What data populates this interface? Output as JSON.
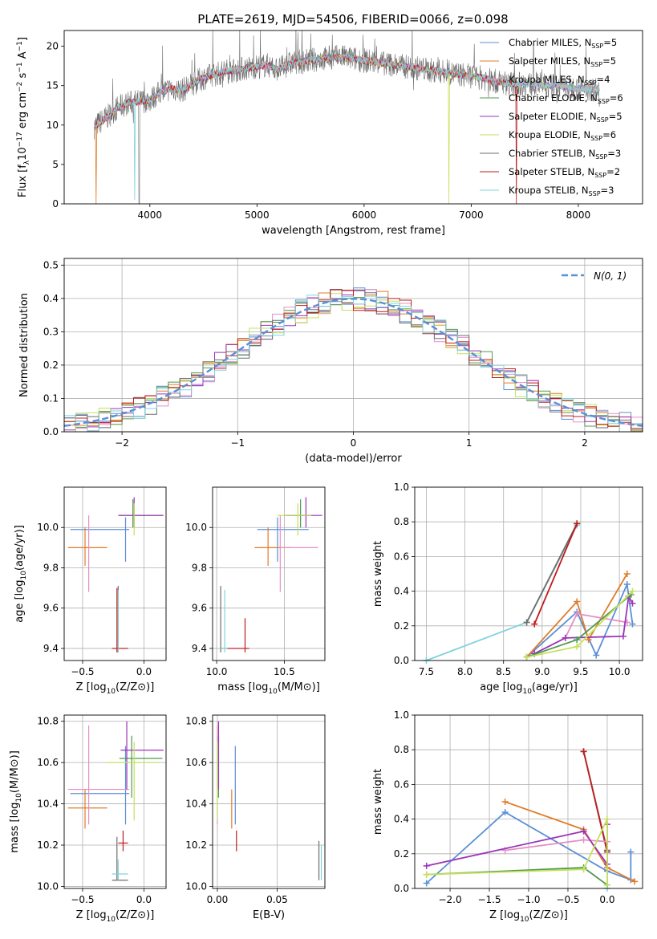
{
  "figure_title": "PLATE=2619, MJD=54506, FIBERID=0066, z=0.098",
  "colors": {
    "blue": "#5b8fd6",
    "orange": "#e07b28",
    "pink": "#e58fc6",
    "green": "#4f9a4f",
    "purple": "#9b35b8",
    "lime": "#c6e05c",
    "gray": "#6e6e6e",
    "red": "#c21b1b",
    "cyan": "#7fd3dc",
    "grid": "#b0b0b0"
  },
  "chart_data": [
    {
      "type": "line",
      "panel": "spectrum",
      "title": "PLATE=2619, MJD=54506, FIBERID=0066, z=0.098",
      "xlabel": "wavelength [Angstrom, rest frame]",
      "ylabel": "Flux [f",
      "xlim": [
        3200,
        8600
      ],
      "ylim": [
        0,
        22
      ],
      "xticks": [
        "4000",
        "5000",
        "6000",
        "7000",
        "8000"
      ],
      "yticks": [
        "0",
        "5",
        "10",
        "15",
        "20"
      ],
      "legend_position": "right",
      "legend": [
        {
          "label": "Chabrier MILES, N",
          "sub": "SSP",
          "suffix": "=5",
          "color": "blue"
        },
        {
          "label": "Salpeter MILES, N",
          "sub": "SSP",
          "suffix": "=5",
          "color": "orange"
        },
        {
          "label": "Kroupa MILES, N",
          "sub": "SSP",
          "suffix": "=4",
          "color": "pink"
        },
        {
          "label": "Chabrier ELODIE, N",
          "sub": "SSP",
          "suffix": "=6",
          "color": "green"
        },
        {
          "label": "Salpeter ELODIE, N",
          "sub": "SSP",
          "suffix": "=5",
          "color": "purple"
        },
        {
          "label": "Kroupa ELODIE, N",
          "sub": "SSP",
          "suffix": "=6",
          "color": "lime"
        },
        {
          "label": "Chabrier STELIB, N",
          "sub": "SSP",
          "suffix": "=3",
          "color": "gray"
        },
        {
          "label": "Salpeter STELIB, N",
          "sub": "SSP",
          "suffix": "=2",
          "color": "red"
        },
        {
          "label": "Kroupa STELIB, N",
          "sub": "SSP",
          "suffix": "=3",
          "color": "cyan"
        }
      ],
      "continuum": [
        [
          3480,
          9.8
        ],
        [
          3600,
          11.0
        ],
        [
          3700,
          12.2
        ],
        [
          3800,
          12.8
        ],
        [
          3900,
          13.0
        ],
        [
          4000,
          13.2
        ],
        [
          4100,
          14.2
        ],
        [
          4200,
          14.6
        ],
        [
          4300,
          14.4
        ],
        [
          4400,
          15.2
        ],
        [
          4500,
          16.0
        ],
        [
          4600,
          16.4
        ],
        [
          4700,
          16.8
        ],
        [
          4800,
          17.0
        ],
        [
          4900,
          17.2
        ],
        [
          5000,
          17.4
        ],
        [
          5100,
          17.6
        ],
        [
          5200,
          17.0
        ],
        [
          5300,
          17.8
        ],
        [
          5400,
          18.0
        ],
        [
          5500,
          18.2
        ],
        [
          5600,
          18.4
        ],
        [
          5700,
          18.6
        ],
        [
          5800,
          18.6
        ],
        [
          5900,
          18.4
        ],
        [
          6000,
          18.2
        ],
        [
          6100,
          18.0
        ],
        [
          6200,
          17.8
        ],
        [
          6300,
          17.6
        ],
        [
          6400,
          17.4
        ],
        [
          6500,
          17.2
        ],
        [
          6600,
          17.0
        ],
        [
          6700,
          16.8
        ],
        [
          6800,
          16.6
        ],
        [
          6900,
          16.4
        ],
        [
          7000,
          16.2
        ],
        [
          7100,
          16.0
        ],
        [
          7200,
          15.6
        ],
        [
          7300,
          15.4
        ],
        [
          7400,
          15.2
        ],
        [
          7500,
          15.2
        ],
        [
          7600,
          15.2
        ],
        [
          7700,
          15.0
        ],
        [
          7800,
          15.0
        ],
        [
          7900,
          14.8
        ],
        [
          8000,
          14.6
        ],
        [
          8100,
          14.6
        ],
        [
          8200,
          14.5
        ]
      ],
      "drops": [
        {
          "series": "orange",
          "x": 3500,
          "y": 0
        },
        {
          "series": "cyan",
          "x": 3860,
          "y": 0.5
        },
        {
          "series": "gray",
          "x": 3900,
          "y": 0
        },
        {
          "series": "lime",
          "x": 6790,
          "y": 0
        },
        {
          "series": "red",
          "x": 7420,
          "y": 0
        }
      ]
    },
    {
      "type": "line",
      "panel": "residuals",
      "xlabel": "(data-model)/error",
      "ylabel": "Normed distribution",
      "xlim": [
        -2.5,
        2.5
      ],
      "ylim": [
        0,
        0.52
      ],
      "xticks": [
        "−2",
        "−1",
        "0",
        "1",
        "2"
      ],
      "yticks": [
        "0.0",
        "0.1",
        "0.2",
        "0.3",
        "0.4",
        "0.5"
      ],
      "legend_position": "top-right",
      "gaussian_label": "N(0, 1)",
      "gaussian_color": "blue",
      "bin_width": 0.1
    },
    {
      "type": "scatter",
      "panel": "age-vs-Z",
      "xlabel": "Z [log",
      "ylabel": "age  [log",
      "xlim": [
        -0.65,
        0.18
      ],
      "ylim": [
        9.34,
        10.2
      ],
      "xticks": [
        "−0.5",
        "0.0"
      ],
      "yticks": [
        "9.4",
        "9.6",
        "9.8",
        "10.0"
      ],
      "points": [
        {
          "color": "blue",
          "x": -0.15,
          "y": 9.99,
          "xlo": -0.6,
          "xhi": -0.12,
          "ylo": 9.83,
          "yhi": 10.05
        },
        {
          "color": "orange",
          "x": -0.48,
          "y": 9.9,
          "xlo": -0.62,
          "xhi": -0.3,
          "ylo": 9.81,
          "yhi": 10.0
        },
        {
          "color": "pink",
          "x": -0.45,
          "y": 9.9,
          "xlo": -0.45,
          "xhi": -0.45,
          "ylo": 9.68,
          "yhi": 10.06
        },
        {
          "color": "green",
          "x": -0.09,
          "y": 10.06,
          "xlo": -0.2,
          "xhi": 0.15,
          "ylo": 10.0,
          "yhi": 10.14
        },
        {
          "color": "purple",
          "x": -0.08,
          "y": 10.06,
          "xlo": -0.21,
          "xhi": 0.16,
          "ylo": 10.0,
          "yhi": 10.15
        },
        {
          "color": "lime",
          "x": -0.08,
          "y": 10.06,
          "xlo": -0.08,
          "xhi": -0.08,
          "ylo": 9.96,
          "yhi": 10.12
        },
        {
          "color": "gray",
          "x": -0.21,
          "y": 9.4,
          "xlo": -0.26,
          "xhi": -0.13,
          "ylo": 9.38,
          "yhi": 9.71
        },
        {
          "color": "red",
          "x": -0.22,
          "y": 9.4,
          "xlo": -0.26,
          "xhi": -0.13,
          "ylo": 9.38,
          "yhi": 9.7
        },
        {
          "color": "cyan",
          "x": -0.21,
          "y": 9.4,
          "xlo": -0.21,
          "xhi": -0.21,
          "ylo": 9.38,
          "yhi": 9.69
        }
      ]
    },
    {
      "type": "scatter",
      "panel": "age-vs-mass",
      "xlabel": "mass [log",
      "ylabel": "",
      "xlim": [
        9.97,
        10.8
      ],
      "ylim": [
        9.34,
        10.2
      ],
      "xticks": [
        "10.0",
        "10.5"
      ],
      "yticks": [
        "9.4",
        "9.6",
        "9.8",
        "10.0"
      ],
      "points": [
        {
          "color": "blue",
          "x": 10.45,
          "y": 9.99,
          "xlo": 10.3,
          "xhi": 10.68,
          "ylo": 9.83,
          "yhi": 10.05
        },
        {
          "color": "orange",
          "x": 10.38,
          "y": 9.9,
          "xlo": 10.28,
          "xhi": 10.55,
          "ylo": 9.81,
          "yhi": 10.0
        },
        {
          "color": "pink",
          "x": 10.47,
          "y": 9.9,
          "xlo": 10.47,
          "xhi": 10.75,
          "ylo": 9.68,
          "yhi": 10.06
        },
        {
          "color": "green",
          "x": 10.62,
          "y": 10.06,
          "xlo": 10.52,
          "xhi": 10.7,
          "ylo": 10.0,
          "yhi": 10.14
        },
        {
          "color": "purple",
          "x": 10.66,
          "y": 10.06,
          "xlo": 10.5,
          "xhi": 10.78,
          "ylo": 10.0,
          "yhi": 10.15
        },
        {
          "color": "lime",
          "x": 10.6,
          "y": 10.06,
          "xlo": 10.45,
          "xhi": 10.7,
          "ylo": 9.96,
          "yhi": 10.12
        },
        {
          "color": "gray",
          "x": 10.03,
          "y": 9.4,
          "xlo": 10.03,
          "xhi": 10.24,
          "ylo": 9.38,
          "yhi": 9.71
        },
        {
          "color": "red",
          "x": 10.21,
          "y": 9.4,
          "xlo": 10.03,
          "xhi": 10.24,
          "ylo": 9.38,
          "yhi": 9.55
        },
        {
          "color": "cyan",
          "x": 10.06,
          "y": 9.4,
          "xlo": 10.03,
          "xhi": 10.08,
          "ylo": 9.38,
          "yhi": 9.69
        }
      ]
    },
    {
      "type": "line",
      "panel": "weight-vs-age",
      "xlabel": "age  [log",
      "ylabel": "mass weight",
      "xlim": [
        7.35,
        10.3
      ],
      "ylim": [
        0,
        1.0
      ],
      "xticks": [
        "7.5",
        "8.0",
        "8.5",
        "9.0",
        "9.5",
        "10.0"
      ],
      "yticks": [
        "0.0",
        "0.2",
        "0.4",
        "0.6",
        "0.8",
        "1.0"
      ],
      "series": [
        {
          "color": "cyan",
          "x": [
            7.5,
            8.8,
            9.45
          ],
          "y": [
            0.0,
            0.22,
            0.78
          ]
        },
        {
          "color": "gray",
          "x": [
            8.8,
            9.45
          ],
          "y": [
            0.22,
            0.79
          ]
        },
        {
          "color": "red",
          "x": [
            8.9,
            9.45
          ],
          "y": [
            0.21,
            0.79
          ]
        },
        {
          "color": "blue",
          "x": [
            8.8,
            9.45,
            9.7,
            10.1,
            10.17
          ],
          "y": [
            0.02,
            0.28,
            0.03,
            0.44,
            0.21
          ]
        },
        {
          "color": "orange",
          "x": [
            8.8,
            9.45,
            9.6,
            10.1
          ],
          "y": [
            0.02,
            0.34,
            0.12,
            0.5
          ]
        },
        {
          "color": "pink",
          "x": [
            9.3,
            9.45,
            10.1
          ],
          "y": [
            0.13,
            0.27,
            0.22
          ]
        },
        {
          "color": "purple",
          "x": [
            8.9,
            9.3,
            10.05,
            10.12,
            10.17
          ],
          "y": [
            0.04,
            0.13,
            0.14,
            0.37,
            0.33
          ]
        },
        {
          "color": "green",
          "x": [
            8.8,
            9.45,
            10.15
          ],
          "y": [
            0.02,
            0.12,
            0.38
          ]
        },
        {
          "color": "lime",
          "x": [
            8.8,
            9.45,
            10.17
          ],
          "y": [
            0.02,
            0.08,
            0.4
          ]
        }
      ]
    },
    {
      "type": "scatter",
      "panel": "mass-vs-Z",
      "xlabel": "Z [log",
      "ylabel": "mass [log",
      "xlim": [
        -0.65,
        0.18
      ],
      "ylim": [
        9.99,
        10.83
      ],
      "xticks": [
        "−0.5",
        "0.0"
      ],
      "yticks": [
        "10.0",
        "10.2",
        "10.4",
        "10.6",
        "10.8"
      ],
      "points": [
        {
          "color": "blue",
          "x": -0.15,
          "y": 10.45,
          "xlo": -0.6,
          "xhi": -0.12,
          "ylo": 10.3,
          "yhi": 10.68
        },
        {
          "color": "orange",
          "x": -0.48,
          "y": 10.38,
          "xlo": -0.62,
          "xhi": -0.3,
          "ylo": 10.28,
          "yhi": 10.47
        },
        {
          "color": "pink",
          "x": -0.45,
          "y": 10.47,
          "xlo": -0.62,
          "xhi": -0.12,
          "ylo": 10.3,
          "yhi": 10.78
        },
        {
          "color": "green",
          "x": -0.1,
          "y": 10.62,
          "xlo": -0.2,
          "xhi": 0.15,
          "ylo": 10.43,
          "yhi": 10.73
        },
        {
          "color": "purple",
          "x": -0.14,
          "y": 10.66,
          "xlo": -0.19,
          "xhi": 0.16,
          "ylo": 10.47,
          "yhi": 10.8
        },
        {
          "color": "lime",
          "x": -0.08,
          "y": 10.6,
          "xlo": -0.3,
          "xhi": 0.12,
          "ylo": 10.32,
          "yhi": 10.7
        },
        {
          "color": "gray",
          "x": -0.22,
          "y": 10.03,
          "xlo": -0.26,
          "xhi": -0.13,
          "ylo": 10.03,
          "yhi": 10.24
        },
        {
          "color": "red",
          "x": -0.17,
          "y": 10.21,
          "xlo": -0.21,
          "xhi": -0.13,
          "ylo": 10.17,
          "yhi": 10.27
        },
        {
          "color": "cyan",
          "x": -0.21,
          "y": 10.06,
          "xlo": -0.26,
          "xhi": -0.13,
          "ylo": 10.03,
          "yhi": 10.13
        }
      ]
    },
    {
      "type": "scatter",
      "panel": "mass-vs-EBV",
      "xlabel": "E(B-V)",
      "ylabel": "",
      "xlim": [
        -0.004,
        0.09
      ],
      "ylim": [
        9.99,
        10.83
      ],
      "xticks": [
        "0.00",
        "0.05"
      ],
      "yticks": [
        "10.0",
        "10.2",
        "10.4",
        "10.6",
        "10.8"
      ],
      "points": [
        {
          "color": "blue",
          "x": 0.015,
          "y": 10.45,
          "ylo": 10.3,
          "yhi": 10.68
        },
        {
          "color": "orange",
          "x": 0.012,
          "y": 10.38,
          "ylo": 10.28,
          "yhi": 10.47
        },
        {
          "color": "pink",
          "x": 0.0,
          "y": 10.47,
          "ylo": 10.3,
          "yhi": 10.78
        },
        {
          "color": "green",
          "x": 0.001,
          "y": 10.62,
          "ylo": 10.43,
          "yhi": 10.73
        },
        {
          "color": "purple",
          "x": 0.001,
          "y": 10.66,
          "ylo": 10.47,
          "yhi": 10.8
        },
        {
          "color": "lime",
          "x": 0.0,
          "y": 10.6,
          "ylo": 10.32,
          "yhi": 10.7
        },
        {
          "color": "gray",
          "x": 0.085,
          "y": 10.03,
          "ylo": 10.03,
          "yhi": 10.22
        },
        {
          "color": "red",
          "x": 0.016,
          "y": 10.21,
          "ylo": 10.17,
          "yhi": 10.27
        },
        {
          "color": "cyan",
          "x": 0.087,
          "y": 10.06,
          "ylo": 10.03,
          "yhi": 10.2
        }
      ]
    },
    {
      "type": "line",
      "panel": "weight-vs-Z",
      "xlabel": "Z [log",
      "ylabel": "mass weight",
      "xlim": [
        -2.45,
        0.45
      ],
      "ylim": [
        0,
        1.0
      ],
      "xticks": [
        "−2.0",
        "−1.5",
        "−1.0",
        "−0.5",
        "0.0"
      ],
      "yticks": [
        "0.0",
        "0.2",
        "0.4",
        "0.6",
        "0.8",
        "1.0"
      ],
      "series": [
        {
          "color": "cyan",
          "x": [
            -0.3,
            0.0,
            0.0
          ],
          "y": [
            0.79,
            0.22,
            0.0
          ]
        },
        {
          "color": "gray",
          "x": [
            -0.3,
            0.0
          ],
          "y": [
            0.79,
            0.22
          ]
        },
        {
          "color": "red",
          "x": [
            -0.3,
            0.0
          ],
          "y": [
            0.79,
            0.21
          ]
        },
        {
          "color": "blue",
          "x": [
            -2.3,
            -1.3,
            0.0,
            0.3,
            0.3
          ],
          "y": [
            0.03,
            0.44,
            0.1,
            0.05,
            0.21
          ]
        },
        {
          "color": "orange",
          "x": [
            -1.3,
            -0.3,
            0.0,
            0.35
          ],
          "y": [
            0.5,
            0.34,
            0.12,
            0.04
          ]
        },
        {
          "color": "pink",
          "x": [
            -1.3,
            -0.3,
            0.0
          ],
          "y": [
            0.22,
            0.28,
            0.27
          ]
        },
        {
          "color": "purple",
          "x": [
            -2.3,
            -0.3,
            0.0,
            0.0
          ],
          "y": [
            0.13,
            0.33,
            0.14,
            0.37
          ]
        },
        {
          "color": "green",
          "x": [
            -2.3,
            -0.3,
            0.0
          ],
          "y": [
            0.08,
            0.12,
            0.02
          ]
        },
        {
          "color": "lime",
          "x": [
            -2.3,
            -0.3,
            0.0,
            0.0
          ],
          "y": [
            0.08,
            0.11,
            0.4,
            0.02
          ]
        }
      ]
    }
  ]
}
